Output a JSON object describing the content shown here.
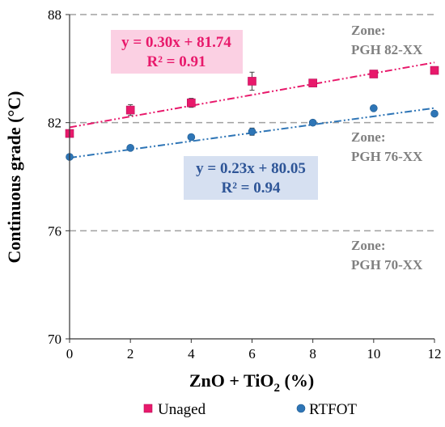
{
  "chart_data": {
    "type": "scatter",
    "xlabel_main": "ZnO + TiO",
    "xlabel_sub": "2",
    "xlabel_unit": " (%)",
    "ylabel": "Continuous grade (°C)",
    "xlim": [
      0,
      12
    ],
    "ylim": [
      70,
      88
    ],
    "x_ticks": [
      0,
      2,
      4,
      6,
      8,
      10,
      12
    ],
    "y_ticks": [
      70,
      76,
      82,
      88
    ],
    "grid": false,
    "zone_lines": [
      82,
      76
    ],
    "series": [
      {
        "name": "Unaged",
        "marker": "square",
        "color": "#e8196b",
        "x": [
          0,
          2,
          4,
          6,
          8,
          10,
          12
        ],
        "y": [
          81.4,
          82.7,
          83.1,
          84.3,
          84.2,
          84.7,
          84.9
        ],
        "err": [
          0.15,
          0.3,
          0.25,
          0.5,
          0.15,
          0.15,
          0.15
        ],
        "fit": {
          "slope": 0.3,
          "intercept": 81.74,
          "equation": "y = 0.30x + 81.74",
          "r2": "R² = 0.91"
        }
      },
      {
        "name": "RTFOT",
        "marker": "circle",
        "color": "#2e75b6",
        "x": [
          0,
          2,
          4,
          6,
          8,
          10,
          12
        ],
        "y": [
          80.1,
          80.6,
          81.2,
          81.5,
          82.0,
          82.8,
          82.5
        ],
        "err": [
          0.1,
          0.1,
          0.1,
          0.2,
          0.1,
          0.1,
          0.1
        ],
        "fit": {
          "slope": 0.23,
          "intercept": 80.05,
          "equation": "y = 0.23x + 80.05",
          "r2": "R² = 0.94"
        }
      }
    ],
    "zones": [
      {
        "line1": "Zone:",
        "line2": "PGH 82-XX"
      },
      {
        "line1": "Zone:",
        "line2": "PGH 76-XX"
      },
      {
        "line1": "Zone:",
        "line2": "PGH 70-XX"
      }
    ],
    "legend_placement": "bottom"
  }
}
